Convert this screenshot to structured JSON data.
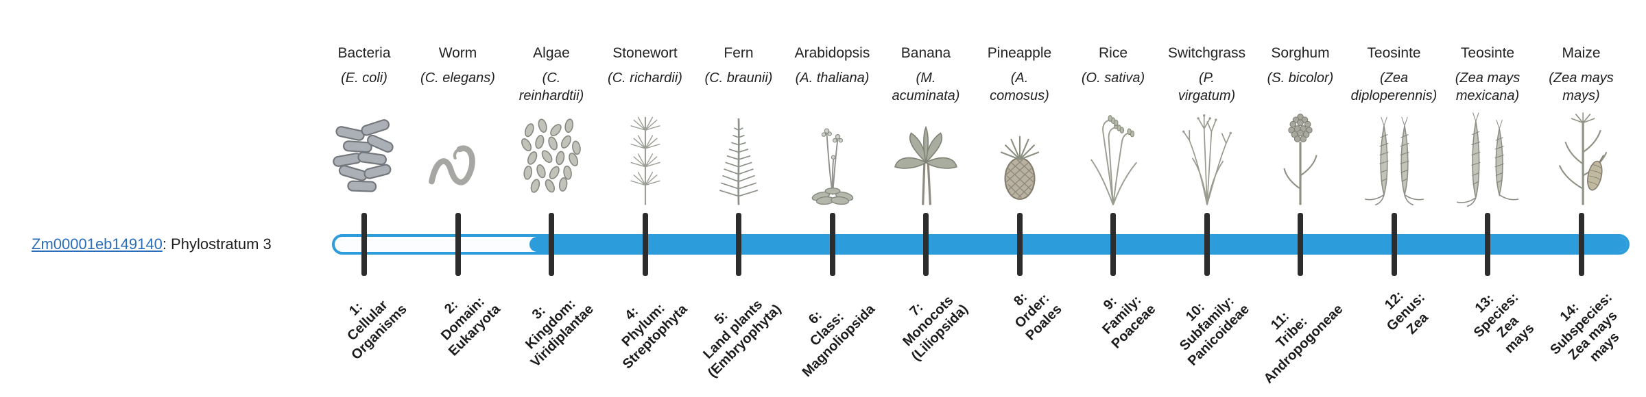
{
  "gene": {
    "id": "Zm00001eb149140",
    "suffix": ": Phylostratum 3",
    "phylostratum": 3
  },
  "colors": {
    "bar": "#2d9cdb",
    "tick": "#2d2d2d",
    "link": "#2a6ebb"
  },
  "timeline": {
    "fill_starts_at_stratum": 3,
    "total_strata": 14
  },
  "phylostrata": [
    {
      "index": 1,
      "organism": "Bacteria",
      "species": "(E. coli)",
      "icon": "bacteria-icon",
      "label": "1:\nCellular\nOrganisms"
    },
    {
      "index": 2,
      "organism": "Worm",
      "species": "(C. elegans)",
      "icon": "worm-icon",
      "label": "2:\nDomain:\nEukaryota"
    },
    {
      "index": 3,
      "organism": "Algae",
      "species": "(C.\nreinhardtii)",
      "icon": "algae-icon",
      "label": "3:\nKingdom:\nViridiplantae"
    },
    {
      "index": 4,
      "organism": "Stonewort",
      "species": "(C. richardii)",
      "icon": "stonewort-icon",
      "label": "4:\nPhylum:\nStreptophyta"
    },
    {
      "index": 5,
      "organism": "Fern",
      "species": "(C. braunii)",
      "icon": "fern-icon",
      "label": "5:\nLand plants\n(Embryophyta)"
    },
    {
      "index": 6,
      "organism": "Arabidopsis",
      "species": "(A. thaliana)",
      "icon": "arabidopsis-icon",
      "label": "6:\nClass:\nMagnoliopsida"
    },
    {
      "index": 7,
      "organism": "Banana",
      "species": "(M.\nacuminata)",
      "icon": "banana-icon",
      "label": "7:\nMonocots\n(Liliopsida)"
    },
    {
      "index": 8,
      "organism": "Pineapple",
      "species": "(A.\ncomosus)",
      "icon": "pineapple-icon",
      "label": "8:\nOrder:\nPoales"
    },
    {
      "index": 9,
      "organism": "Rice",
      "species": "(O. sativa)",
      "icon": "rice-icon",
      "label": "9:\nFamily:\nPoaceae"
    },
    {
      "index": 10,
      "organism": "Switchgrass",
      "species": "(P.\nvirgatum)",
      "icon": "switchgrass-icon",
      "label": "10:\nSubfamily:\nPanicoideae"
    },
    {
      "index": 11,
      "organism": "Sorghum",
      "species": "(S. bicolor)",
      "icon": "sorghum-icon",
      "label": "11:\nTribe:\nAndropogoneae"
    },
    {
      "index": 12,
      "organism": "Teosinte",
      "species": "(Zea\ndiploperennis)",
      "icon": "teosinte-icon",
      "label": "12:\nGenus:\nZea"
    },
    {
      "index": 13,
      "organism": "Teosinte",
      "species": "(Zea mays\nmexicana)",
      "icon": "teosinte2-icon",
      "label": "13:\nSpecies:\nZea\nmays"
    },
    {
      "index": 14,
      "organism": "Maize",
      "species": "(Zea mays\nmays)",
      "icon": "maize-icon",
      "label": "14:\nSubspecies:\nZea mays\nmays"
    }
  ]
}
